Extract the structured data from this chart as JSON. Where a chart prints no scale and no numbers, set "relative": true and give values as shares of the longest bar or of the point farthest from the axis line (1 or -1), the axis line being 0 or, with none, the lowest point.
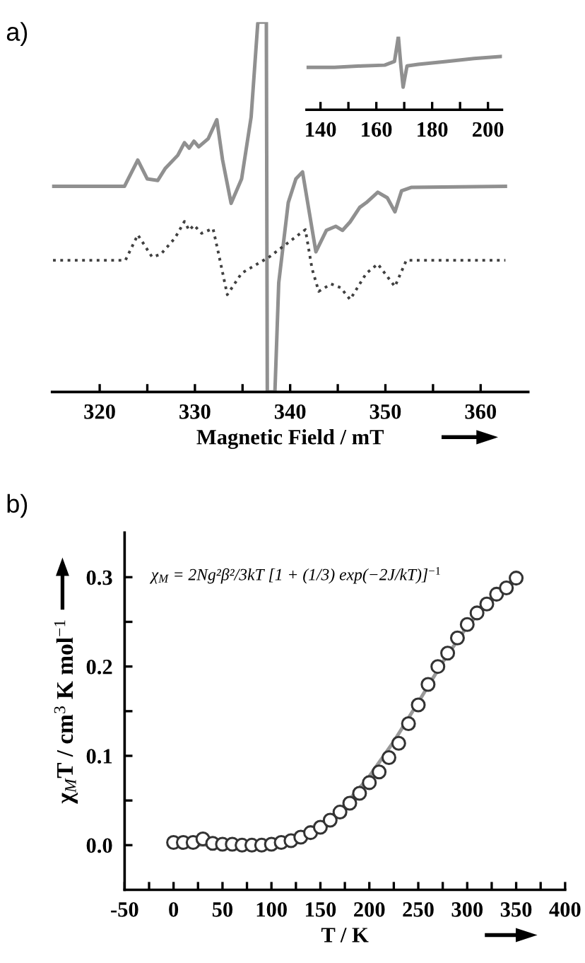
{
  "chart_data": [
    {
      "type": "line",
      "relative": true,
      "xlabel": "Magnetic Field / mT",
      "annotations": [
        "a)"
      ],
      "xlim": [
        315,
        365
      ],
      "xticks": [
        320,
        {
          "value": 325,
          "label": null
        },
        330,
        {
          "value": 335,
          "label": null
        },
        340,
        {
          "value": 345,
          "label": null
        },
        350,
        {
          "value": 355,
          "label": null
        },
        360
      ],
      "tick_labels": "x",
      "grid": false,
      "legend": false,
      "series": [
        {
          "color": "#909090",
          "line_style": "solid",
          "x": [
            315.1,
            322.6,
            324.0,
            325.0,
            326.1,
            326.9,
            328.2,
            328.9,
            329.4,
            329.9,
            330.4,
            331.4,
            332.3,
            332.9,
            333.8,
            334.9,
            335.9,
            336.6,
            336.7,
            337.5,
            337.6,
            338.3,
            338.4,
            338.8,
            339.8,
            340.6,
            341.3,
            342.7,
            343.8,
            344.8,
            345.5,
            346.3,
            347.3,
            348.0,
            349.2,
            350.2,
            351.0,
            351.7,
            352.7,
            362.6
          ],
          "values": [
            0.556,
            0.556,
            0.627,
            0.576,
            0.572,
            0.605,
            0.64,
            0.674,
            0.659,
            0.678,
            0.663,
            0.685,
            0.736,
            0.628,
            0.51,
            0.576,
            0.743,
            0.997,
            1.0,
            1.0,
            0.0,
            0.0,
            0.0,
            0.295,
            0.512,
            0.576,
            0.595,
            0.379,
            0.437,
            0.448,
            0.437,
            0.46,
            0.499,
            0.512,
            0.54,
            0.525,
            0.487,
            0.544,
            0.553,
            0.556
          ]
        },
        {
          "color": "#404040",
          "line_style": "dotted",
          "x": [
            315.1,
            322.7,
            324.0,
            325.5,
            326.4,
            327.9,
            328.9,
            329.4,
            329.9,
            330.7,
            331.9,
            332.5,
            333.4,
            334.9,
            337.8,
            341.6,
            342.3,
            343.0,
            344.3,
            345.3,
            346.3,
            348.0,
            349.2,
            351.0,
            352.2,
            362.6
          ],
          "values": [
            0.356,
            0.356,
            0.425,
            0.365,
            0.372,
            0.416,
            0.461,
            0.437,
            0.451,
            0.429,
            0.442,
            0.372,
            0.263,
            0.321,
            0.365,
            0.439,
            0.333,
            0.272,
            0.292,
            0.282,
            0.25,
            0.321,
            0.346,
            0.285,
            0.356,
            0.356
          ]
        }
      ]
    },
    {
      "type": "line",
      "relative": true,
      "xlim": [
        135,
        205
      ],
      "xticks": [
        140,
        {
          "value": 150,
          "label": null
        },
        160,
        {
          "value": 170,
          "label": null
        },
        180,
        {
          "value": 190,
          "label": null
        },
        200
      ],
      "tick_labels": "x",
      "grid": false,
      "legend": false,
      "series": [
        {
          "color": "#909090",
          "line_style": "solid",
          "x": [
            135,
            145,
            155,
            163,
            166.5,
            167.9,
            168.8,
            169.6,
            171,
            175,
            185,
            195,
            205
          ],
          "values": [
            0.58,
            0.58,
            0.6,
            0.61,
            0.66,
            1.0,
            0.6,
            0.31,
            0.6,
            0.62,
            0.66,
            0.7,
            0.73
          ]
        }
      ]
    },
    {
      "type": "scatter",
      "xlabel": "T / K",
      "ylabel": "χ$_{M}$T / cm$^{3}$ K mol$^{−1}$",
      "annotations": [
        "b)",
        "χ$_{M}$ = 2Ng²β²/3kT [1 + (1/3) exp(−2J/kT)]$^{−1}$"
      ],
      "xlim": [
        -50,
        400
      ],
      "xticks": [
        -50,
        {
          "value": -25,
          "label": null
        },
        0,
        {
          "value": 25,
          "label": null
        },
        50,
        {
          "value": 75,
          "label": null
        },
        100,
        {
          "value": 125,
          "label": null
        },
        150,
        {
          "value": 175,
          "label": null
        },
        200,
        {
          "value": 225,
          "label": null
        },
        250,
        {
          "value": 275,
          "label": null
        },
        300,
        {
          "value": 325,
          "label": null
        },
        350,
        {
          "value": 375,
          "label": null
        },
        400
      ],
      "ylim": [
        -0.05,
        0.35
      ],
      "yticks": [
        {
          "value": 0.0,
          "label": "0.0"
        },
        {
          "value": 0.05,
          "label": null
        },
        {
          "value": 0.1,
          "label": "0.1"
        },
        {
          "value": 0.15,
          "label": null
        },
        {
          "value": 0.2,
          "label": "0.2"
        },
        {
          "value": 0.25,
          "label": null
        },
        {
          "value": 0.3,
          "label": "0.3"
        }
      ],
      "grid": false,
      "legend": false,
      "series": [
        {
          "type": "line",
          "color": "#999999",
          "line_style": "solid",
          "marker": "none",
          "x": [
            0,
            100,
            130,
            150,
            175,
            200,
            225,
            250,
            275,
            300,
            325,
            350
          ],
          "values": [
            0.0,
            0.001,
            0.008,
            0.02,
            0.045,
            0.077,
            0.116,
            0.16,
            0.205,
            0.245,
            0.275,
            0.296
          ]
        },
        {
          "type": "scatter",
          "color": "#333333",
          "marker": "circle",
          "x": [
            0,
            10,
            20,
            30,
            40,
            50,
            60,
            70,
            80,
            90,
            100,
            110,
            120,
            130,
            140,
            150,
            160,
            170,
            180,
            190,
            200,
            210,
            220,
            230,
            240,
            250,
            260,
            270,
            280,
            290,
            300,
            310,
            320,
            330,
            340,
            350
          ],
          "values": [
            0.003,
            0.003,
            0.003,
            0.007,
            0.002,
            0.001,
            0.001,
            0.0,
            0.0,
            0.0,
            0.001,
            0.003,
            0.005,
            0.009,
            0.014,
            0.02,
            0.028,
            0.037,
            0.047,
            0.058,
            0.07,
            0.082,
            0.098,
            0.114,
            0.136,
            0.157,
            0.18,
            0.2,
            0.215,
            0.232,
            0.247,
            0.26,
            0.27,
            0.281,
            0.288,
            0.299
          ]
        }
      ]
    }
  ]
}
